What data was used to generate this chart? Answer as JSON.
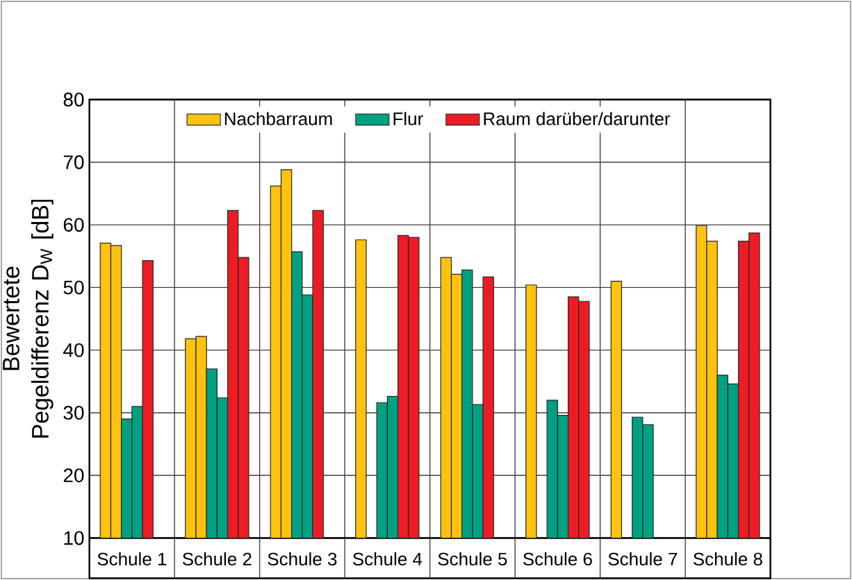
{
  "chart_data": {
    "type": "bar",
    "ylabel": "Bewertete Pegeldifferenz D$_{W}$ [dB]",
    "categories": [
      "Schule 1",
      "Schule 2",
      "Schule 3",
      "Schule 4",
      "Schule 5",
      "Schule 6",
      "Schule 7",
      "Schule 8"
    ],
    "series": [
      {
        "name": "Nachbarraum",
        "color": "#ffc20e",
        "values": [
          57.1,
          41.8,
          66.2,
          57.6,
          54.8,
          50.4,
          51.0,
          59.9
        ]
      },
      {
        "color": "#ffc20e",
        "values": [
          56.7,
          42.2,
          68.8,
          null,
          52.1,
          null,
          null,
          57.4
        ]
      },
      {
        "name": "Flur",
        "color": "#00a082",
        "values": [
          29.0,
          37.0,
          55.7,
          31.6,
          52.8,
          32.0,
          29.3,
          36.0
        ]
      },
      {
        "color": "#00a082",
        "values": [
          31.0,
          32.4,
          48.8,
          32.6,
          31.3,
          29.6,
          28.1,
          34.6
        ]
      },
      {
        "name": "Raum darüber/darunter",
        "color": "#ed1c24",
        "values": [
          54.3,
          62.3,
          62.3,
          58.3,
          51.7,
          48.5,
          null,
          57.4
        ]
      },
      {
        "color": "#ed1c24",
        "values": [
          null,
          54.8,
          null,
          58.0,
          null,
          47.8,
          null,
          58.7
        ]
      }
    ],
    "ylim": [
      10,
      80
    ],
    "yticks": [
      10,
      20,
      30,
      40,
      50,
      60,
      70,
      80
    ],
    "grid": true,
    "legend": "top"
  }
}
